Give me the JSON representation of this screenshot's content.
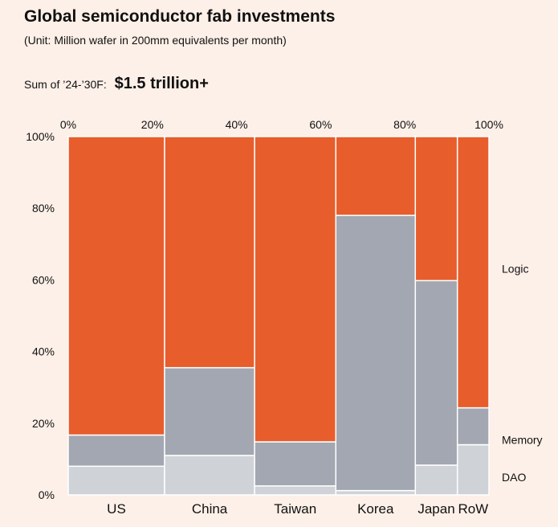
{
  "header": {
    "title": "Global semiconductor fab investments",
    "subtitle": "(Unit: Million wafer in 200mm equivalents per month)",
    "sum_label": "Sum of ’24-’30F:",
    "sum_value": "$1.5 trillion+"
  },
  "chart_data": {
    "type": "mekko",
    "x_ticks": [
      "0%",
      "20%",
      "40%",
      "60%",
      "80%",
      "100%"
    ],
    "y_ticks": [
      "0%",
      "20%",
      "40%",
      "60%",
      "80%",
      "100%"
    ],
    "x_range": [
      0,
      100
    ],
    "y_range": [
      0,
      100
    ],
    "legend_position": "right",
    "series": [
      {
        "name": "DAO",
        "color": "#cfd3d8"
      },
      {
        "name": "Memory",
        "color": "#a2a7b1"
      },
      {
        "name": "Logic",
        "color": "#e85d2c"
      }
    ],
    "categories": [
      {
        "name": "US",
        "width": 22.9,
        "values": [
          8.0,
          8.7,
          83.3
        ]
      },
      {
        "name": "China",
        "width": 21.4,
        "values": [
          11.0,
          24.5,
          64.5
        ]
      },
      {
        "name": "Taiwan",
        "width": 19.3,
        "values": [
          2.5,
          12.3,
          85.2
        ]
      },
      {
        "name": "Korea",
        "width": 18.9,
        "values": [
          1.2,
          76.8,
          22.0
        ]
      },
      {
        "name": "Japan",
        "width": 10.0,
        "values": [
          8.3,
          51.5,
          40.2
        ]
      },
      {
        "name": "RoW",
        "width": 7.5,
        "values": [
          14.0,
          10.3,
          75.7
        ]
      }
    ]
  }
}
